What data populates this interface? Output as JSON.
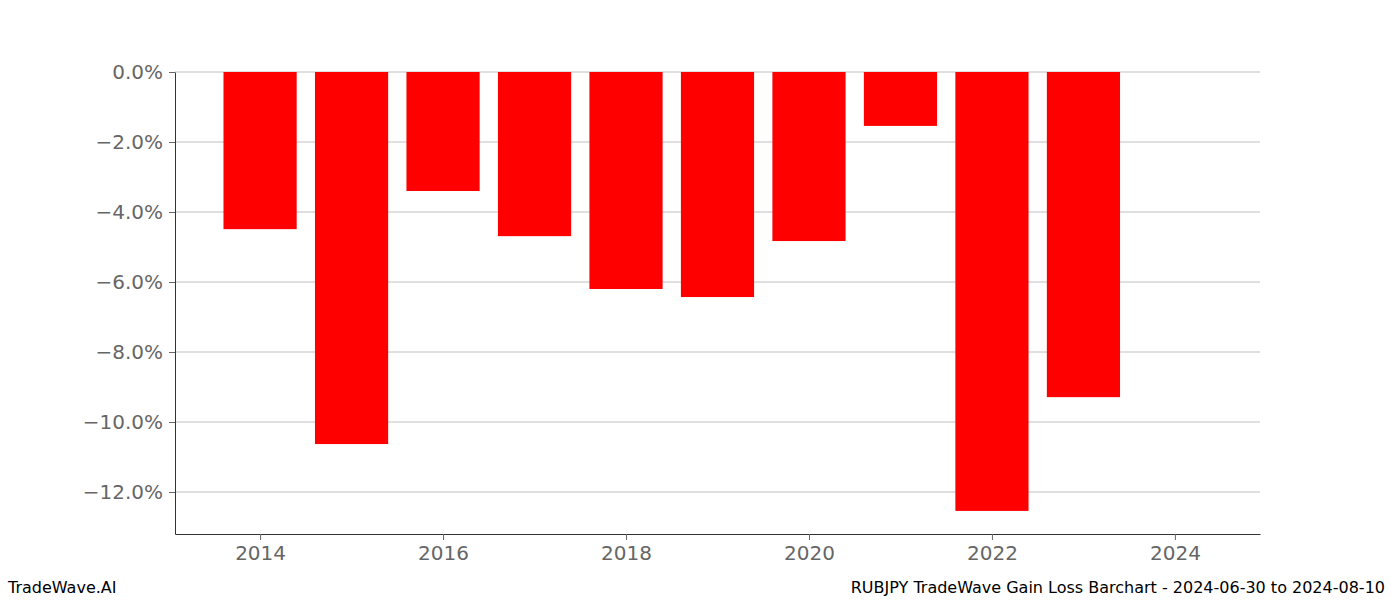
{
  "chart_data": {
    "type": "bar",
    "title": "RUBJPY TradeWave Gain Loss Barchart - 2024-06-30 to 2024-08-10",
    "source": "TradeWave.AI",
    "x": [
      2014,
      2015,
      2016,
      2017,
      2018,
      2019,
      2020,
      2021,
      2022,
      2023
    ],
    "values": [
      -4.49,
      -10.63,
      -3.4,
      -4.69,
      -6.2,
      -6.43,
      -4.83,
      -1.54,
      -12.54,
      -9.29
    ],
    "color": "#ff0000",
    "xlim": [
      2013.07,
      2024.93
    ],
    "xticks": [
      2014,
      2016,
      2018,
      2020,
      2022,
      2024
    ],
    "ylim": [
      -13.2,
      0
    ],
    "yticks": [
      {
        "value": 0,
        "label": "0.0%"
      },
      {
        "value": -2,
        "label": "−2.0%"
      },
      {
        "value": -4,
        "label": "−4.0%"
      },
      {
        "value": -6,
        "label": "−6.0%"
      },
      {
        "value": -8,
        "label": "−8.0%"
      },
      {
        "value": -10,
        "label": "−10.0%"
      },
      {
        "value": -12,
        "label": "−12.0%"
      }
    ],
    "grid": true
  }
}
